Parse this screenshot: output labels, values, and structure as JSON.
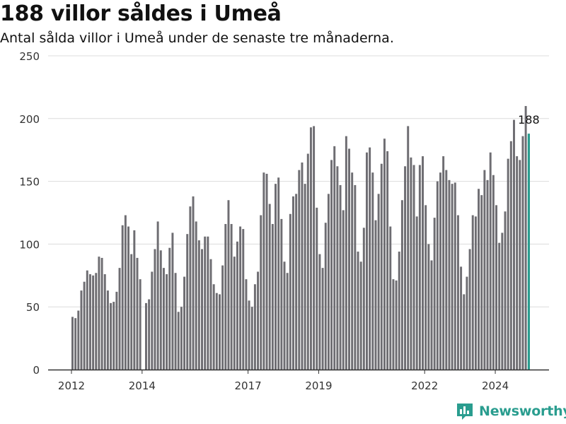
{
  "title": "188 villor såldes i Umeå",
  "subtitle": "Antal sålda villor i Umeå under de senaste tre månaderna.",
  "brand": {
    "name": "Newsworthy",
    "color": "#2a9d8f",
    "icon": "bar-chart-logo-icon"
  },
  "colors": {
    "bar": "#6e6d72",
    "highlight": "#2a9d8f",
    "grid": "#dcdcdc",
    "axis": "#333333"
  },
  "chart_data": {
    "type": "bar",
    "title": "188 villor såldes i Umeå",
    "xlabel": "",
    "ylabel": "",
    "ylim": [
      0,
      250
    ],
    "yticks": [
      0,
      50,
      100,
      150,
      200,
      250
    ],
    "xticks": [
      {
        "label": "2012",
        "value": 2012.0
      },
      {
        "label": "2014",
        "value": 2014.0
      },
      {
        "label": "2017",
        "value": 2017.0
      },
      {
        "label": "2019",
        "value": 2019.0
      },
      {
        "label": "2022",
        "value": 2022.0
      },
      {
        "label": "2024",
        "value": 2024.0
      }
    ],
    "x_start": 2012.0,
    "period": "månad",
    "grid": true,
    "highlight_label": "188",
    "values": [
      42,
      41,
      47,
      63,
      70,
      79,
      76,
      75,
      77,
      90,
      89,
      76,
      63,
      53,
      54,
      62,
      81,
      115,
      123,
      114,
      92,
      111,
      89,
      72,
      null,
      53,
      56,
      78,
      96,
      118,
      95,
      81,
      76,
      97,
      109,
      77,
      46,
      50,
      74,
      108,
      130,
      138,
      118,
      103,
      96,
      106,
      106,
      88,
      68,
      61,
      60,
      83,
      116,
      135,
      116,
      90,
      102,
      114,
      112,
      72,
      55,
      50,
      68,
      78,
      123,
      157,
      156,
      132,
      116,
      148,
      153,
      120,
      86,
      77,
      124,
      138,
      140,
      159,
      165,
      148,
      172,
      193,
      194,
      129,
      92,
      81,
      117,
      140,
      167,
      178,
      162,
      147,
      127,
      186,
      176,
      157,
      147,
      94,
      86,
      113,
      173,
      177,
      157,
      119,
      140,
      164,
      184,
      174,
      114,
      72,
      71,
      94,
      135,
      162,
      194,
      169,
      163,
      122,
      163,
      170,
      131,
      100,
      87,
      121,
      150,
      157,
      170,
      159,
      151,
      148,
      149,
      123,
      82,
      60,
      74,
      96,
      123,
      122,
      144,
      139,
      159,
      151,
      173,
      155,
      131,
      101,
      109,
      126,
      168,
      182,
      199,
      170,
      167,
      186,
      210,
      188
    ]
  }
}
